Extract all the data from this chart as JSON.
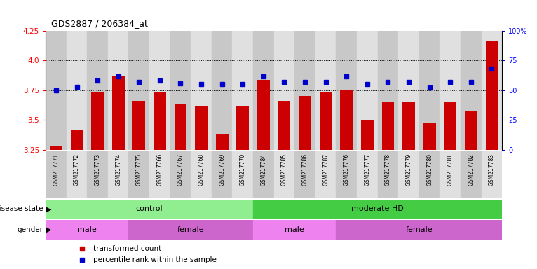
{
  "title": "GDS2887 / 206384_at",
  "samples": [
    "GSM217771",
    "GSM217772",
    "GSM217773",
    "GSM217774",
    "GSM217775",
    "GSM217766",
    "GSM217767",
    "GSM217768",
    "GSM217769",
    "GSM217770",
    "GSM217784",
    "GSM217785",
    "GSM217786",
    "GSM217787",
    "GSM217776",
    "GSM217777",
    "GSM217778",
    "GSM217779",
    "GSM217780",
    "GSM217781",
    "GSM217782",
    "GSM217783"
  ],
  "bar_values": [
    3.28,
    3.42,
    3.73,
    3.87,
    3.66,
    3.74,
    3.63,
    3.62,
    3.38,
    3.62,
    3.84,
    3.66,
    3.7,
    3.74,
    3.75,
    3.5,
    3.65,
    3.65,
    3.48,
    3.65,
    3.58,
    4.17
  ],
  "blue_values": [
    50,
    53,
    58,
    62,
    57,
    58,
    56,
    55,
    55,
    55,
    62,
    57,
    57,
    57,
    62,
    55,
    57,
    57,
    52,
    57,
    57,
    68
  ],
  "ylim_left": [
    3.25,
    4.25
  ],
  "ylim_right": [
    0,
    100
  ],
  "yticks_left": [
    3.25,
    3.5,
    3.75,
    4.0,
    4.25
  ],
  "yticks_right": [
    0,
    25,
    50,
    75,
    100
  ],
  "ytick_labels_right": [
    "0",
    "25",
    "50",
    "75",
    "100%"
  ],
  "grid_lines": [
    3.5,
    3.75,
    4.0
  ],
  "bar_color": "#cc0000",
  "blue_color": "#0000cc",
  "bar_width": 0.6,
  "disease_state_groups": [
    {
      "label": "control",
      "start": 0,
      "end": 10,
      "color": "#90ee90"
    },
    {
      "label": "moderate HD",
      "start": 10,
      "end": 22,
      "color": "#44cc44"
    }
  ],
  "gender_groups": [
    {
      "label": "male",
      "start": 0,
      "end": 4,
      "color": "#ee82ee"
    },
    {
      "label": "female",
      "start": 4,
      "end": 10,
      "color": "#cc66cc"
    },
    {
      "label": "male",
      "start": 10,
      "end": 14,
      "color": "#ee82ee"
    },
    {
      "label": "female",
      "start": 14,
      "end": 22,
      "color": "#cc66cc"
    }
  ],
  "legend_items": [
    {
      "label": "transformed count",
      "color": "#cc0000"
    },
    {
      "label": "percentile rank within the sample",
      "color": "#0000cc"
    }
  ],
  "bg_odd": "#c8c8c8",
  "bg_even": "#e0e0e0"
}
